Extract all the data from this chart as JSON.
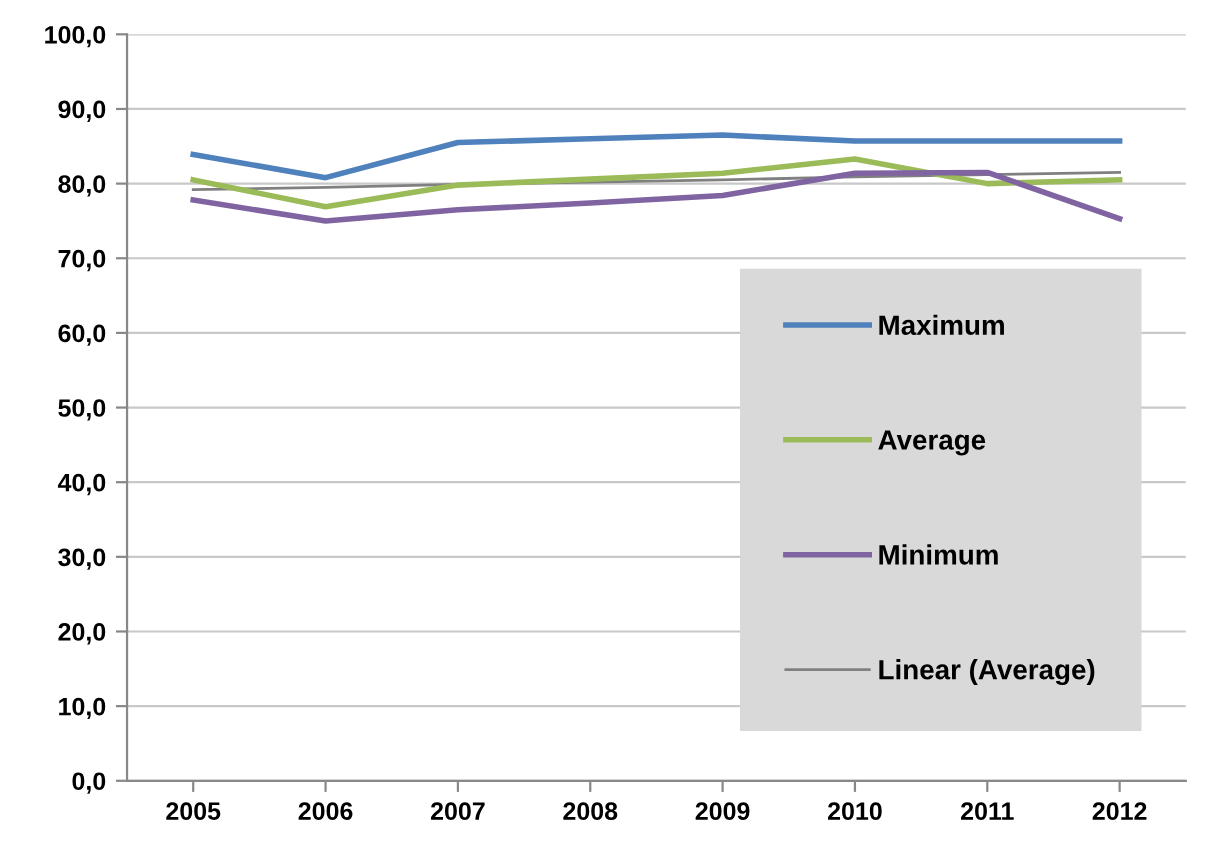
{
  "chart_data": {
    "type": "line",
    "categories": [
      "2005",
      "2006",
      "2007",
      "2008",
      "2009",
      "2010",
      "2011",
      "2012"
    ],
    "series": [
      {
        "name": "Maximum",
        "color": "#4f81bd",
        "values": [
          83.9,
          80.8,
          85.5,
          86.0,
          86.5,
          85.7,
          85.7,
          85.7
        ]
      },
      {
        "name": "Average",
        "color": "#9bbb59",
        "values": [
          80.5,
          76.9,
          79.8,
          80.6,
          81.4,
          83.3,
          80.0,
          80.5
        ]
      },
      {
        "name": "Minimum",
        "color": "#8064a2",
        "values": [
          77.8,
          75.0,
          76.5,
          77.4,
          78.4,
          81.4,
          81.5,
          75.3
        ]
      },
      {
        "name": "Linear (Average)",
        "color": "#808080",
        "values": [
          79.2,
          79.5,
          79.9,
          80.2,
          80.5,
          80.9,
          81.2,
          81.5
        ]
      }
    ],
    "ylim": [
      0,
      100
    ],
    "yticks": [
      {
        "value": 0,
        "label": "0,0"
      },
      {
        "value": 10,
        "label": "10,0"
      },
      {
        "value": 20,
        "label": "20,0"
      },
      {
        "value": 30,
        "label": "30,0"
      },
      {
        "value": 40,
        "label": "40,0"
      },
      {
        "value": 50,
        "label": "50,0"
      },
      {
        "value": 60,
        "label": "60,0"
      },
      {
        "value": 70,
        "label": "70,0"
      },
      {
        "value": 80,
        "label": "80,0"
      },
      {
        "value": 90,
        "label": "90,0"
      },
      {
        "value": 100,
        "label": "100,0"
      }
    ],
    "grid": "y",
    "legend": "bottom right",
    "marker": "none",
    "line_style": "solid"
  }
}
